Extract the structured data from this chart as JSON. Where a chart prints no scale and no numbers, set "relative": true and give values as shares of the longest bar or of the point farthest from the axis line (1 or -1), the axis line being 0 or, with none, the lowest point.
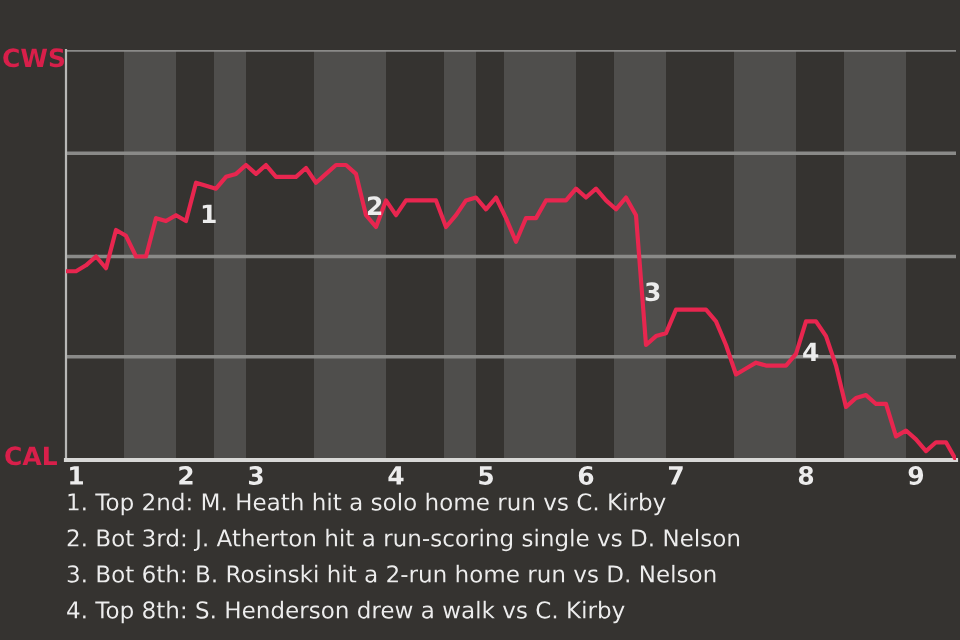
{
  "chart_data": {
    "type": "line",
    "relative": true,
    "categories": [
      null,
      "1",
      null,
      null,
      null,
      null,
      null,
      null,
      null,
      null,
      null,
      null,
      "2",
      null,
      null,
      null,
      null,
      null,
      null,
      "3",
      null,
      null,
      null,
      null,
      null,
      null,
      null,
      null,
      null,
      null,
      null,
      null,
      null,
      "4",
      null,
      null,
      null,
      null,
      null,
      null,
      null,
      null,
      "5",
      null,
      null,
      null,
      null,
      null,
      null,
      null,
      null,
      null,
      "6",
      null,
      null,
      null,
      null,
      null,
      null,
      null,
      null,
      "7",
      null,
      null,
      null,
      null,
      null,
      null,
      null,
      null,
      null,
      null,
      null,
      null,
      "8",
      null,
      null,
      null,
      null,
      null,
      null,
      null,
      null,
      null,
      null,
      "9",
      null,
      null,
      null,
      null
    ],
    "series": [
      {
        "color": "#e8264f",
        "values": [
          0.64,
          0.64,
          0.66,
          0.69,
          0.65,
          0.78,
          0.76,
          0.69,
          0.69,
          0.82,
          0.81,
          0.83,
          0.81,
          0.94,
          0.93,
          0.92,
          0.96,
          0.97,
          1,
          0.97,
          1,
          0.96,
          0.96,
          0.96,
          0.99,
          0.94,
          0.97,
          1,
          1,
          0.97,
          0.83,
          0.79,
          0.88,
          0.83,
          0.88,
          0.88,
          0.88,
          0.88,
          0.79,
          0.83,
          0.88,
          0.89,
          0.85,
          0.89,
          0.82,
          0.74,
          0.82,
          0.82,
          0.88,
          0.88,
          0.88,
          0.92,
          0.89,
          0.92,
          0.88,
          0.85,
          0.89,
          0.83,
          0.39,
          0.42,
          0.43,
          0.51,
          0.51,
          0.51,
          0.51,
          0.47,
          0.39,
          0.29,
          0.31,
          0.33,
          0.32,
          0.32,
          0.32,
          0.36,
          0.47,
          0.47,
          0.42,
          0.32,
          0.18,
          0.21,
          0.22,
          0.19,
          0.19,
          0.08,
          0.1,
          0.07,
          0.03,
          0.06,
          0.06,
          0
        ]
      }
    ],
    "ref_lines": [
      {
        "axis": "y",
        "value": 0.35,
        "label": null,
        "color": "#8a8a88"
      },
      {
        "axis": "y",
        "value": 0.69,
        "label": null,
        "color": "#8a8a88"
      },
      {
        "axis": "y",
        "value": 1.04,
        "label": null,
        "color": "#8a8a88"
      },
      {
        "axis": "y",
        "value": 1.39,
        "label": null,
        "color": "#8a8a88"
      }
    ],
    "annotations": [
      {
        "text": "CWS"
      },
      {
        "text": "CAL"
      },
      {
        "text": "1"
      },
      {
        "text": "2"
      },
      {
        "text": "3"
      },
      {
        "text": "4"
      },
      "1. Top 2nd: M. Heath hit a solo home run vs C. Kirby",
      "2. Bot 3rd: J. Atherton hit a run-scoring single vs D. Nelson",
      "3. Bot 6th: B. Rosinski hit a 2-run home run vs D. Nelson",
      "4. Top 8th: S. Henderson drew a walk vs C. Kirby"
    ]
  }
}
